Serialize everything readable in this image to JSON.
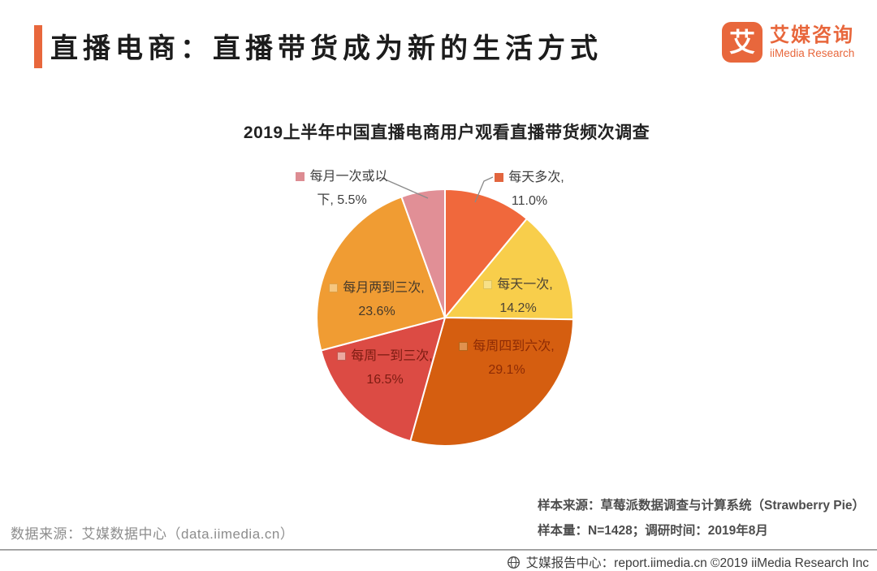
{
  "page": {
    "brand_color": "#E8673C",
    "header": {
      "title": "直播电商：直播带货成为新的生活方式"
    },
    "logo": {
      "glyph": "艾",
      "name_cn": "艾媒咨询",
      "name_en": "iiMedia Research"
    },
    "footnotes": {
      "data_source": "数据来源：艾媒数据中心（data.iimedia.cn）",
      "sample_source": "样本来源：草莓派数据调查与计算系统（Strawberry Pie）",
      "sample_info": "样本量：N=1428；调研时间：2019年8月"
    },
    "footer": {
      "text": "艾媒报告中心：report.iimedia.cn ©2019 iiMedia Research Inc"
    }
  },
  "chart_data": {
    "type": "pie",
    "title": "2019上半年中国直播电商用户观看直播带货频次调查",
    "start_angle_deg": 0,
    "direction": "clockwise",
    "legend_position": "none",
    "slices": [
      {
        "name": "每天多次",
        "value": 11.0,
        "display": "11.0%",
        "color": "#F0683C",
        "label_placement": "outside",
        "label_color": "#3F3F3F",
        "marker": "#E2653E"
      },
      {
        "name": "每天一次",
        "value": 14.2,
        "display": "14.2%",
        "color": "#F8CE4B",
        "label_placement": "inside",
        "label_color": "#4C4334",
        "marker": "#F7E088",
        "marker_border": "#DFC25A"
      },
      {
        "name": "每周四到六次",
        "value": 29.1,
        "display": "29.1%",
        "color": "#D55E10",
        "label_placement": "inside",
        "label_color": "#8D2B05",
        "marker": "#E0914F",
        "marker_border": "#B5651A"
      },
      {
        "name": "每周一到三次",
        "value": 16.5,
        "display": "16.5%",
        "color": "#DC4B44",
        "label_placement": "inside",
        "label_color": "#7D1C12",
        "marker": "#ECA8A0",
        "marker_border": "#C4574E"
      },
      {
        "name": "每月两到三次",
        "value": 23.6,
        "display": "23.6%",
        "color": "#F09C33",
        "label_placement": "inside",
        "label_color": "#45392A",
        "marker": "#F6C67F",
        "marker_border": "#DD9F45"
      },
      {
        "name": "每月一次或以下",
        "value": 5.5,
        "display": "5.5%",
        "color": "#E18F96",
        "label_placement": "outside",
        "label_color": "#3F3F3F",
        "marker": "#DD8C92"
      }
    ]
  }
}
